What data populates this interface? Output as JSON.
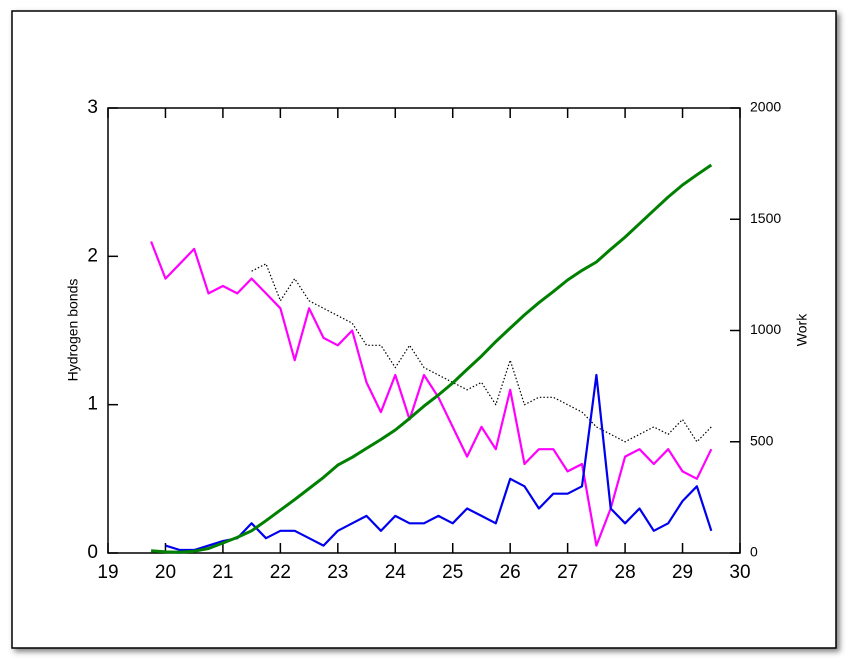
{
  "chart_data": {
    "type": "line",
    "y_label": "Hydrogen bonds",
    "y2_label": "Work",
    "x": [
      19.75,
      20,
      20.25,
      20.5,
      20.75,
      21,
      21.25,
      21.5,
      21.75,
      22,
      22.25,
      22.5,
      22.75,
      23,
      23.25,
      23.5,
      23.75,
      24,
      24.25,
      24.5,
      24.75,
      25,
      25.25,
      25.5,
      25.75,
      26,
      26.25,
      26.5,
      26.75,
      27,
      27.25,
      27.5,
      27.75,
      28,
      28.25,
      28.5,
      28.75,
      29,
      29.25,
      29.5
    ],
    "series": [
      {
        "color": "#000000",
        "style": "dotted",
        "values": [
          null,
          null,
          null,
          null,
          null,
          null,
          null,
          1.9,
          1.95,
          1.7,
          1.85,
          1.7,
          1.65,
          1.6,
          1.55,
          1.4,
          1.4,
          1.25,
          1.4,
          1.25,
          1.2,
          1.15,
          1.1,
          1.15,
          1.0,
          1.3,
          1.0,
          1.05,
          1.05,
          1.0,
          0.95,
          0.85,
          0.8,
          0.75,
          0.8,
          0.85,
          0.8,
          0.9,
          0.75,
          0.85
        ]
      },
      {
        "color": "#ff00ff",
        "style": "solid",
        "values": [
          2.1,
          1.85,
          1.95,
          2.05,
          1.75,
          1.8,
          1.75,
          1.85,
          1.75,
          1.65,
          1.3,
          1.65,
          1.45,
          1.4,
          1.5,
          1.15,
          0.95,
          1.2,
          0.9,
          1.2,
          1.05,
          0.85,
          0.65,
          0.85,
          0.7,
          1.1,
          0.6,
          0.7,
          0.7,
          0.55,
          0.6,
          0.05,
          0.3,
          0.65,
          0.7,
          0.6,
          0.7,
          0.55,
          0.5,
          0.7
        ]
      },
      {
        "color": "#0000ee",
        "style": "solid",
        "values": [
          null,
          0.05,
          0.02,
          0.02,
          0.05,
          0.08,
          0.1,
          0.2,
          0.1,
          0.15,
          0.15,
          0.1,
          0.05,
          0.15,
          0.2,
          0.25,
          0.15,
          0.25,
          0.2,
          0.2,
          0.25,
          0.2,
          0.3,
          0.25,
          0.2,
          0.5,
          0.45,
          0.3,
          0.4,
          0.4,
          0.45,
          1.2,
          0.3,
          0.2,
          0.3,
          0.15,
          0.2,
          0.35,
          0.45,
          0.15
        ]
      },
      {
        "color": "#008000",
        "style": "solid",
        "axis": "y2",
        "values": [
          10,
          5,
          3,
          8,
          20,
          45,
          70,
          100,
          145,
          193,
          240,
          290,
          340,
          395,
          430,
          470,
          510,
          553,
          605,
          660,
          710,
          764,
          825,
          885,
          950,
          1011,
          1070,
          1125,
          1175,
          1227,
          1270,
          1308,
          1365,
          1420,
          1480,
          1540,
          1600,
          1654,
          1700,
          1744
        ]
      }
    ],
    "xlim": [
      19,
      30
    ],
    "xticks": [
      19,
      20,
      21,
      22,
      23,
      24,
      25,
      26,
      27,
      28,
      29,
      30
    ],
    "ylim": [
      0,
      3
    ],
    "yticks": [
      0,
      1,
      2,
      3
    ],
    "y2lim": [
      0,
      2000
    ],
    "y2ticks": [
      0,
      500,
      1000,
      1500,
      2000
    ]
  }
}
